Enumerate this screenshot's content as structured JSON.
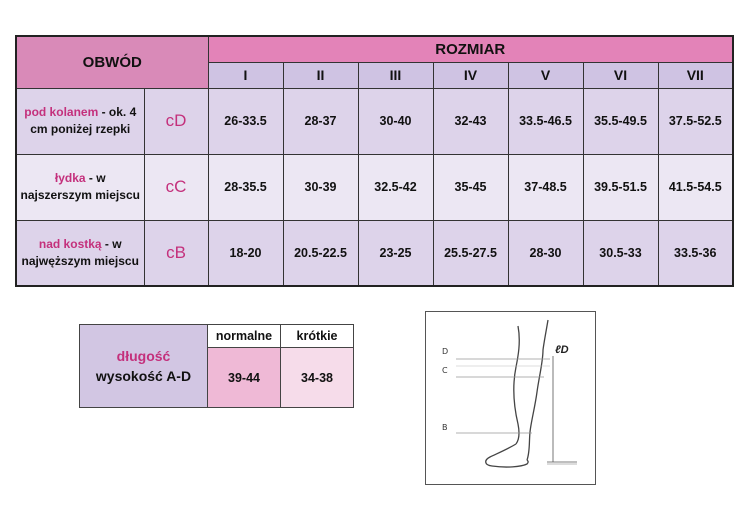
{
  "size_table": {
    "obwod_header": "OBWÓD",
    "rozmiar_header": "ROZMIAR",
    "sizes": [
      "I",
      "II",
      "III",
      "IV",
      "V",
      "VI",
      "VII"
    ],
    "rows": [
      {
        "label_accent": "pod kolanem",
        "label_rest": " - ok. 4 cm poniżej rzepki",
        "code": "cD",
        "values": [
          "26-33.5",
          "28-37",
          "30-40",
          "32-43",
          "33.5-46.5",
          "35.5-49.5",
          "37.5-52.5"
        ]
      },
      {
        "label_accent": "łydka",
        "label_rest": " - w najszerszym miejscu",
        "code": "cC",
        "values": [
          "28-35.5",
          "30-39",
          "32.5-42",
          "35-45",
          "37-48.5",
          "39.5-51.5",
          "41.5-54.5"
        ]
      },
      {
        "label_accent": "nad kostką",
        "label_rest": " - w najwęższym miejscu",
        "code": "cB",
        "values": [
          "18-20",
          "20.5-22.5",
          "23-25",
          "25.5-27.5",
          "28-30",
          "30.5-33",
          "33.5-36"
        ]
      }
    ]
  },
  "length_table": {
    "label_accent": "długość",
    "label_main": "wysokość A-D",
    "columns": [
      "normalne",
      "krótkie"
    ],
    "values": [
      "39-44",
      "34-38"
    ]
  },
  "diagram": {
    "letters": [
      "D",
      "C",
      "B"
    ],
    "mark": "ℓD"
  },
  "colors": {
    "accent_pink": "#c4307c",
    "header_pink": "#e383b8",
    "header_lavender": "#cfc3e3",
    "row_lavender": "#ddd3ea",
    "row_light": "#ece7f3"
  }
}
